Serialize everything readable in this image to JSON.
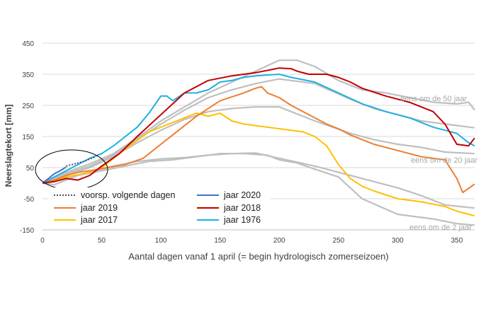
{
  "chart_data": {
    "type": "line",
    "xlabel": "Aantal dagen vanaf 1 april (= begin hydrologisch zomerseizoen)",
    "ylabel": "Neerslagtekort [mm]",
    "xlim": [
      0,
      365
    ],
    "ylim": [
      -150,
      450
    ],
    "xticks": [
      "0",
      "50",
      "100",
      "150",
      "200",
      "250",
      "300",
      "350"
    ],
    "yticks": [
      "-150",
      "-50",
      "50",
      "150",
      "250",
      "350",
      "450"
    ],
    "grid": "horizontal",
    "legend_position": "lower-left",
    "reference_lines": [
      {
        "label": "eens om de 50 jaar",
        "color": "#bfbfbf",
        "x": [
          0,
          20,
          40,
          60,
          80,
          100,
          120,
          140,
          160,
          180,
          200,
          215,
          230,
          250,
          270,
          290,
          310,
          330,
          350,
          360,
          365
        ],
        "y": [
          0,
          35,
          62,
          95,
          145,
          200,
          245,
          290,
          325,
          360,
          395,
          395,
          375,
          330,
          300,
          290,
          275,
          260,
          255,
          260,
          235
        ]
      },
      {
        "label": "",
        "color": "#bfbfbf",
        "x": [
          0,
          20,
          40,
          60,
          80,
          100,
          120,
          140,
          160,
          180,
          200,
          230,
          260,
          280,
          300,
          320,
          340,
          365
        ],
        "y": [
          0,
          30,
          55,
          90,
          140,
          190,
          235,
          275,
          300,
          320,
          335,
          320,
          270,
          240,
          220,
          200,
          190,
          178
        ]
      },
      {
        "label": "eens om de 20 jaar",
        "color": "#bfbfbf",
        "x": [
          0,
          20,
          40,
          60,
          80,
          100,
          120,
          140,
          160,
          180,
          200,
          230,
          260,
          280,
          300,
          320,
          340,
          365
        ],
        "y": [
          0,
          25,
          50,
          85,
          130,
          170,
          205,
          230,
          240,
          245,
          245,
          200,
          160,
          140,
          125,
          115,
          100,
          95
        ]
      },
      {
        "label": "",
        "color": "#bfbfbf",
        "x": [
          0,
          20,
          40,
          60,
          80,
          100,
          120,
          140,
          160,
          180,
          200,
          230,
          260,
          280,
          300,
          320,
          340,
          365
        ],
        "y": [
          0,
          18,
          35,
          55,
          70,
          78,
          82,
          90,
          95,
          97,
          80,
          55,
          25,
          5,
          -15,
          -40,
          -70,
          -80
        ]
      },
      {
        "label": "eens om de 2 jaar",
        "color": "#bfbfbf",
        "x": [
          0,
          10,
          20,
          30,
          50,
          70,
          90,
          110,
          130,
          150,
          170,
          190,
          200,
          215,
          230,
          250,
          270,
          300,
          330,
          350,
          365
        ],
        "y": [
          0,
          -5,
          10,
          25,
          40,
          55,
          70,
          75,
          85,
          95,
          95,
          90,
          75,
          65,
          45,
          20,
          -50,
          -100,
          -115,
          -130,
          -135
        ]
      }
    ],
    "series": [
      {
        "name": "voorsp. volgende dagen",
        "color": "#44546a",
        "dash": true,
        "x": [
          20,
          25,
          30,
          35,
          40,
          45
        ],
        "y": [
          55,
          60,
          65,
          70,
          78,
          85
        ]
      },
      {
        "name": "jaar 2020",
        "color": "#4472c4",
        "x": [
          0,
          5,
          10,
          15,
          20
        ],
        "y": [
          0,
          15,
          30,
          40,
          52
        ]
      },
      {
        "name": "jaar 2019",
        "color": "#ed7d31",
        "x": [
          0,
          10,
          20,
          30,
          40,
          55,
          70,
          85,
          100,
          115,
          130,
          150,
          170,
          180,
          185,
          190,
          200,
          210,
          220,
          230,
          240,
          250,
          260,
          270,
          280,
          300,
          320,
          340,
          350,
          355,
          365
        ],
        "y": [
          0,
          10,
          25,
          35,
          40,
          50,
          60,
          80,
          125,
          170,
          215,
          265,
          290,
          305,
          310,
          290,
          275,
          250,
          230,
          210,
          190,
          175,
          155,
          140,
          125,
          105,
          85,
          75,
          15,
          -30,
          -3
        ]
      },
      {
        "name": "jaar 2018",
        "color": "#c00000",
        "x": [
          0,
          10,
          20,
          30,
          40,
          50,
          65,
          80,
          100,
          120,
          140,
          160,
          180,
          200,
          210,
          215,
          225,
          240,
          250,
          260,
          270,
          290,
          310,
          330,
          340,
          350,
          360,
          365
        ],
        "y": [
          0,
          5,
          15,
          10,
          25,
          55,
          95,
          150,
          220,
          290,
          330,
          345,
          355,
          370,
          368,
          360,
          350,
          350,
          340,
          325,
          305,
          280,
          260,
          230,
          190,
          125,
          120,
          145
        ]
      },
      {
        "name": "jaar 2017",
        "color": "#ffc000",
        "x": [
          0,
          20,
          40,
          50,
          60,
          70,
          90,
          110,
          120,
          130,
          140,
          150,
          160,
          170,
          180,
          200,
          220,
          230,
          240,
          250,
          260,
          270,
          280,
          300,
          320,
          340,
          350,
          365
        ],
        "y": [
          0,
          20,
          35,
          50,
          80,
          110,
          165,
          195,
          210,
          225,
          215,
          225,
          200,
          190,
          185,
          175,
          165,
          150,
          120,
          60,
          15,
          -10,
          -25,
          -50,
          -60,
          -75,
          -90,
          -105
        ]
      },
      {
        "name": "jaar 1976",
        "color": "#1fb0e0",
        "x": [
          0,
          10,
          20,
          30,
          40,
          50,
          60,
          70,
          80,
          90,
          100,
          105,
          110,
          120,
          130,
          140,
          150,
          160,
          170,
          180,
          200,
          210,
          230,
          250,
          270,
          290,
          310,
          330,
          350,
          360,
          365
        ],
        "y": [
          0,
          20,
          40,
          60,
          80,
          95,
          120,
          150,
          180,
          225,
          280,
          280,
          265,
          290,
          290,
          300,
          325,
          330,
          340,
          345,
          350,
          340,
          325,
          290,
          255,
          230,
          210,
          180,
          160,
          130,
          120
        ]
      }
    ],
    "annotations": [
      "eens om de 50 jaar",
      "eens om de 20 jaar",
      "eens om de 2 jaar"
    ]
  }
}
